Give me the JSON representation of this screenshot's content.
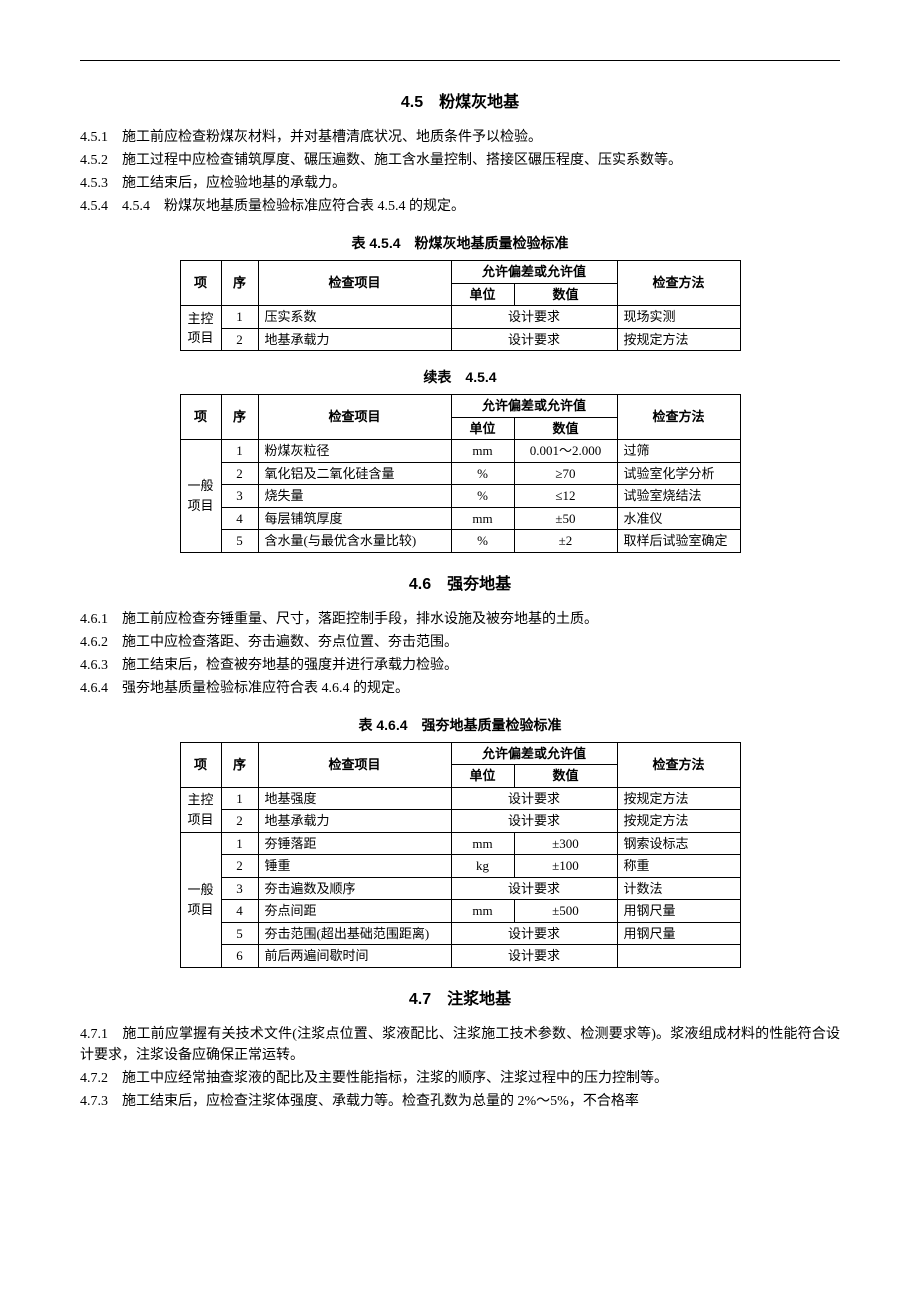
{
  "section45": {
    "title": "4.5　粉煤灰地基",
    "p1": "4.5.1　施工前应检查粉煤灰材料，并对基槽清底状况、地质条件予以检验。",
    "p2": "4.5.2　施工过程中应检查铺筑厚度、碾压遍数、施工含水量控制、搭接区碾压程度、压实系数等。",
    "p3": "4.5.3　施工结束后，应检验地基的承载力。",
    "p4": "4.5.4　4.5.4　粉煤灰地基质量检验标准应符合表 4.5.4 的规定。"
  },
  "table454": {
    "caption": "表 4.5.4　粉煤灰地基质量检验标准",
    "header": {
      "cat": "项",
      "seq": "序",
      "item": "检查项目",
      "allow": "允许偏差或允许值",
      "unit": "单位",
      "value": "数值",
      "method": "检查方法"
    },
    "group1": "主控项目",
    "r1": {
      "seq": "1",
      "item": "压实系数",
      "allow": "设计要求",
      "method": "现场实测"
    },
    "r2": {
      "seq": "2",
      "item": "地基承载力",
      "allow": "设计要求",
      "method": "按规定方法"
    }
  },
  "table454c": {
    "caption": "续表　4.5.4",
    "header": {
      "cat": "项",
      "seq": "序",
      "item": "检查项目",
      "allow": "允许偏差或允许值",
      "unit": "单位",
      "value": "数值",
      "method": "检查方法"
    },
    "group": "一般项目",
    "r1": {
      "seq": "1",
      "item": "粉煤灰粒径",
      "unit": "mm",
      "value": "0.001～2.000",
      "method": "过筛"
    },
    "r2": {
      "seq": "2",
      "item": "氧化铝及二氧化硅含量",
      "unit": "%",
      "value": "≥70",
      "method": "试验室化学分析"
    },
    "r3": {
      "seq": "3",
      "item": "烧失量",
      "unit": "%",
      "value": "≤12",
      "method": "试验室烧结法"
    },
    "r4": {
      "seq": "4",
      "item": "每层铺筑厚度",
      "unit": "mm",
      "value": "±50",
      "method": "水准仪"
    },
    "r5": {
      "seq": "5",
      "item": "含水量(与最优含水量比较)",
      "unit": "%",
      "value": "±2",
      "method": "取样后试验室确定"
    }
  },
  "section46": {
    "title": "4.6　强夯地基",
    "p1": "4.6.1　施工前应检查夯锤重量、尺寸，落距控制手段，排水设施及被夯地基的土质。",
    "p2": "4.6.2　施工中应检查落距、夯击遍数、夯点位置、夯击范围。",
    "p3": "4.6.3　施工结束后，检查被夯地基的强度并进行承载力检验。",
    "p4": "4.6.4　强夯地基质量检验标准应符合表 4.6.4 的规定。"
  },
  "table464": {
    "caption": "表 4.6.4　强夯地基质量检验标准",
    "header": {
      "cat": "项",
      "seq": "序",
      "item": "检查项目",
      "allow": "允许偏差或允许值",
      "unit": "单位",
      "value": "数值",
      "method": "检查方法"
    },
    "group1": "主控项目",
    "group2": "一般项目",
    "m1": {
      "seq": "1",
      "item": "地基强度",
      "allow": "设计要求",
      "method": "按规定方法"
    },
    "m2": {
      "seq": "2",
      "item": "地基承载力",
      "allow": "设计要求",
      "method": "按规定方法"
    },
    "g1": {
      "seq": "1",
      "item": "夯锤落距",
      "unit": "mm",
      "value": "±300",
      "method": "钢索设标志"
    },
    "g2": {
      "seq": "2",
      "item": "锤重",
      "unit": "kg",
      "value": "±100",
      "method": "称重"
    },
    "g3": {
      "seq": "3",
      "item": "夯击遍数及顺序",
      "allow": "设计要求",
      "method": "计数法"
    },
    "g4": {
      "seq": "4",
      "item": "夯点间距",
      "unit": "mm",
      "value": "±500",
      "method": "用钢尺量"
    },
    "g5": {
      "seq": "5",
      "item": "夯击范围(超出基础范围距离)",
      "allow": "设计要求",
      "method": "用钢尺量"
    },
    "g6": {
      "seq": "6",
      "item": "前后两遍间歇时间",
      "allow": "设计要求",
      "method": ""
    }
  },
  "section47": {
    "title": "4.7　注浆地基",
    "p1": "4.7.1　施工前应掌握有关技术文件(注浆点位置、浆液配比、注浆施工技术参数、检测要求等)。浆液组成材料的性能符合设计要求，注浆设备应确保正常运转。",
    "p2": "4.7.2　施工中应经常抽查浆液的配比及主要性能指标，注浆的顺序、注浆过程中的压力控制等。",
    "p3": "4.7.3　施工结束后，应检查注浆体强度、承载力等。检查孔数为总量的 2%～5%，不合格率"
  }
}
